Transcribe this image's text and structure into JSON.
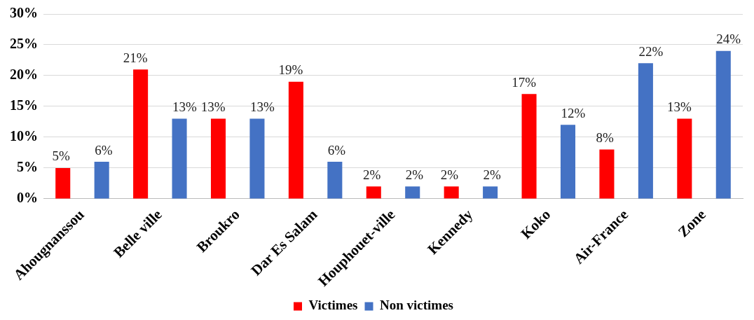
{
  "chart_data": {
    "type": "bar",
    "categories": [
      "Ahougnanssou",
      "Belle ville",
      "Broukro",
      "Dar Es Salam",
      "Houphouet-ville",
      "Kennedy",
      "Koko",
      "Air-France",
      "Zone"
    ],
    "series": [
      {
        "name": "Victimes",
        "color": "#ff0000",
        "values": [
          5,
          21,
          13,
          19,
          2,
          2,
          17,
          8,
          13
        ],
        "value_labels": [
          "5%",
          "21%",
          "13%",
          "19%",
          "2%",
          "2%",
          "17%",
          "8%",
          "13%"
        ]
      },
      {
        "name": "Non victimes",
        "color": "#4472c4",
        "values": [
          6,
          13,
          13,
          6,
          2,
          2,
          12,
          22,
          24
        ],
        "value_labels": [
          "6%",
          "13%",
          "13%",
          "6%",
          "2%",
          "2%",
          "12%",
          "22%",
          "24%"
        ]
      }
    ],
    "ylim": [
      0,
      30
    ],
    "yticks": [
      {
        "value": 0,
        "label": "0%"
      },
      {
        "value": 5,
        "label": "5%"
      },
      {
        "value": 10,
        "label": "10%"
      },
      {
        "value": 15,
        "label": "15%"
      },
      {
        "value": 20,
        "label": "20%"
      },
      {
        "value": 25,
        "label": "25%"
      },
      {
        "value": 30,
        "label": "30%"
      }
    ],
    "grid": "y",
    "legend": "bottom"
  }
}
